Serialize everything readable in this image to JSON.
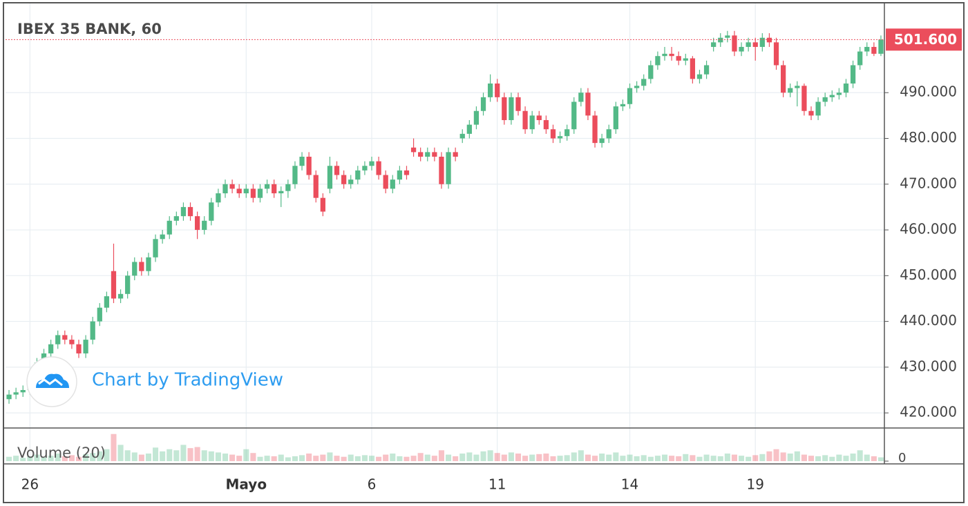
{
  "chart_data": {
    "type": "candlestick",
    "title": "IBEX 35 BANK, 60",
    "watermark": "Chart by TradingView",
    "grid": true,
    "up_color": "#53b987",
    "down_color": "#eb4d5c",
    "categories": [
      null,
      null,
      null,
      "26",
      null,
      null,
      null,
      null,
      null,
      null,
      null,
      null,
      null,
      null,
      null,
      null,
      null,
      null,
      null,
      null,
      null,
      null,
      null,
      null,
      null,
      null,
      null,
      null,
      null,
      null,
      null,
      null,
      null,
      null,
      "Mayo",
      null,
      null,
      null,
      null,
      null,
      null,
      null,
      null,
      null,
      null,
      null,
      null,
      null,
      null,
      null,
      null,
      null,
      "6",
      null,
      null,
      null,
      null,
      null,
      null,
      null,
      null,
      null,
      null,
      null,
      null,
      null,
      null,
      null,
      null,
      null,
      "11",
      null,
      null,
      null,
      null,
      null,
      null,
      null,
      null,
      null,
      null,
      null,
      null,
      null,
      null,
      null,
      null,
      null,
      null,
      "14",
      null,
      null,
      null,
      null,
      null,
      null,
      null,
      null,
      null,
      null,
      null,
      null,
      null,
      null,
      null,
      null,
      null,
      "19",
      null,
      null,
      null,
      null,
      null,
      null,
      null,
      null,
      null,
      null,
      null,
      null,
      null,
      null,
      null,
      null,
      null,
      null
    ],
    "open": [
      423,
      424,
      424.5,
      425,
      428,
      431,
      433,
      435,
      437,
      436,
      435,
      433,
      436,
      440,
      443,
      451,
      445,
      446,
      450,
      453,
      451,
      454,
      458,
      459,
      462,
      463,
      465,
      463,
      460,
      462,
      466,
      468,
      470,
      469,
      468,
      469,
      467,
      469,
      470,
      468,
      468.5,
      470,
      474,
      476,
      472,
      467,
      469,
      474,
      472,
      470,
      471,
      473,
      474,
      475,
      472,
      469,
      471,
      473,
      478,
      477,
      476,
      477,
      476,
      470,
      477,
      480,
      481,
      483,
      486,
      489,
      492,
      489,
      484,
      489,
      486,
      482,
      485,
      484,
      482,
      480,
      480.5,
      482,
      488,
      490,
      485,
      479,
      480,
      482,
      487,
      487.5,
      491,
      491.5,
      493,
      496,
      498,
      498.5,
      498,
      497,
      497.5,
      493,
      494,
      500,
      501,
      502,
      502.5,
      499,
      500,
      501,
      500,
      502,
      501,
      496,
      490,
      491,
      491.5,
      486,
      485,
      488,
      489,
      489.5,
      490,
      492,
      496,
      499,
      500,
      498.5
    ],
    "high": [
      425,
      425.5,
      426,
      429,
      432,
      434,
      436,
      438,
      438,
      437,
      436,
      437,
      441,
      444,
      446.5,
      457,
      447,
      451,
      454,
      454,
      455,
      459,
      460,
      463,
      464,
      466,
      466,
      464,
      463,
      467,
      469,
      471,
      471,
      470,
      470,
      470,
      470,
      471,
      471,
      469.5,
      471,
      475,
      477,
      477,
      473,
      468,
      476,
      475,
      473,
      472,
      474,
      475,
      476,
      476,
      473,
      472,
      474,
      474,
      480,
      478,
      478,
      478,
      477,
      478,
      478,
      482,
      484,
      487,
      490,
      494,
      493,
      490,
      490,
      490,
      487,
      486,
      486,
      485,
      483,
      481.5,
      483,
      489,
      491,
      491,
      486,
      481,
      483,
      488,
      488.5,
      492,
      492.5,
      494,
      497,
      499,
      500,
      500,
      499,
      498.5,
      498,
      495,
      497,
      502,
      503,
      503.5,
      503.5,
      501,
      502,
      502,
      503,
      503,
      502,
      497,
      492,
      492.5,
      492,
      487,
      489,
      490,
      490.5,
      491,
      493,
      497,
      500,
      501,
      501,
      502.5
    ],
    "low": [
      422,
      423,
      423.5,
      424,
      427,
      430,
      432,
      434,
      435,
      434,
      432,
      432,
      435,
      439,
      442,
      444,
      444,
      445,
      449,
      450,
      450,
      453,
      457,
      458,
      461,
      462,
      462,
      458,
      459,
      461,
      465,
      467,
      468,
      467,
      467,
      466,
      466,
      468,
      467,
      465,
      467,
      469,
      473,
      471,
      466,
      463,
      468,
      471,
      469,
      469,
      470,
      472,
      473,
      471,
      468,
      468,
      470,
      471,
      476,
      475,
      475,
      475,
      469,
      469,
      475,
      479,
      480,
      482,
      485,
      488,
      488,
      483,
      483,
      485,
      481,
      481,
      483,
      481,
      479,
      479,
      479.5,
      481,
      487,
      484,
      478,
      478,
      479,
      481,
      486,
      486.5,
      490,
      490.5,
      492,
      495,
      497,
      497,
      496,
      496,
      492,
      492,
      493,
      499,
      500,
      501,
      498,
      498,
      499,
      497,
      499,
      500,
      495,
      489,
      489,
      487,
      485,
      484,
      484,
      487,
      488,
      488.5,
      489,
      491,
      495,
      498,
      498,
      498
    ],
    "close": [
      424,
      424.5,
      425,
      428,
      431,
      433,
      435,
      437,
      436,
      435,
      433,
      436,
      440,
      443,
      445.5,
      445,
      446,
      450,
      453,
      451,
      454,
      458,
      459,
      462,
      463,
      465,
      463,
      460,
      462,
      466,
      468,
      470,
      469,
      468,
      469,
      467,
      469,
      470,
      468,
      468.5,
      470,
      474,
      476,
      472,
      467,
      464,
      474,
      472,
      470,
      471,
      473,
      474,
      475,
      472,
      469,
      471,
      473,
      472,
      477,
      476,
      477,
      476,
      470,
      477,
      476,
      481,
      483,
      486,
      489,
      492,
      489,
      484,
      489,
      486,
      482,
      485,
      484,
      482,
      480,
      480.5,
      482,
      488,
      490,
      485,
      479,
      480,
      482,
      487,
      487.5,
      491,
      491.5,
      493,
      496,
      498,
      498.5,
      498,
      497,
      497.5,
      493,
      494,
      496,
      501,
      502,
      502.5,
      499,
      500,
      501,
      500,
      502,
      501,
      496,
      490,
      491,
      491.5,
      486,
      485,
      488,
      489,
      489.5,
      490,
      492,
      496,
      499,
      500,
      498.5,
      501.6
    ],
    "ylim": [
      416.7,
      509.5
    ],
    "yticks": [
      {
        "value": 420,
        "label": "420.000"
      },
      {
        "value": 430,
        "label": "430.000"
      },
      {
        "value": 440,
        "label": "440.000"
      },
      {
        "value": 450,
        "label": "450.000"
      },
      {
        "value": 460,
        "label": "460.000"
      },
      {
        "value": 470,
        "label": "470.000"
      },
      {
        "value": 480,
        "label": "480.000"
      },
      {
        "value": 490,
        "label": "490.000"
      }
    ],
    "last_price": {
      "value": 501.6,
      "label": "501.600"
    },
    "volume": {
      "name": "Volume (20)",
      "values": [
        8,
        10,
        6,
        9,
        12,
        7,
        10,
        14,
        9,
        11,
        8,
        13,
        15,
        18,
        22,
        50,
        30,
        20,
        16,
        12,
        14,
        25,
        18,
        22,
        20,
        30,
        24,
        26,
        20,
        18,
        16,
        14,
        12,
        10,
        22,
        15,
        8,
        10,
        9,
        12,
        7,
        9,
        11,
        14,
        10,
        12,
        16,
        10,
        8,
        12,
        9,
        11,
        10,
        8,
        12,
        14,
        9,
        8,
        10,
        15,
        12,
        10,
        20,
        12,
        9,
        14,
        16,
        12,
        18,
        20,
        15,
        12,
        16,
        14,
        10,
        12,
        13,
        14,
        9,
        10,
        11,
        16,
        20,
        12,
        10,
        14,
        12,
        16,
        10,
        12,
        9,
        11,
        8,
        10,
        12,
        10,
        9,
        13,
        11,
        8,
        12,
        10,
        9,
        14,
        12,
        10,
        8,
        11,
        13,
        18,
        22,
        16,
        14,
        18,
        12,
        10,
        9,
        11,
        8,
        12,
        10,
        14,
        20,
        12,
        9,
        7
      ],
      "ylim": [
        0,
        56
      ],
      "yticks": [
        0
      ]
    }
  }
}
